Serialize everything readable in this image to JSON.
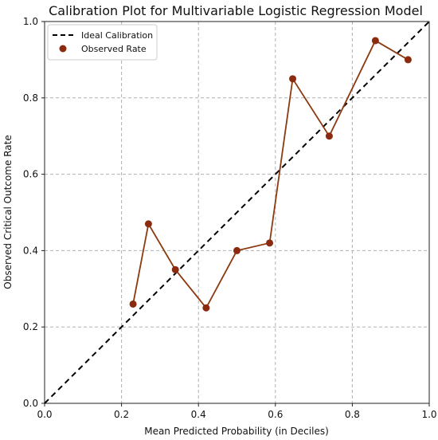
{
  "chart_data": {
    "type": "line",
    "title": "Calibration Plot for Multivariable Logistic Regression Model",
    "xlabel": "Mean Predicted Probability (in Deciles)",
    "ylabel": "Observed Critical Outcome Rate",
    "xlim": [
      0,
      1
    ],
    "ylim": [
      0,
      1
    ],
    "xticks": [
      "0.0",
      "0.2",
      "0.4",
      "0.6",
      "0.8",
      "1.0"
    ],
    "yticks": [
      "0.0",
      "0.2",
      "0.4",
      "0.6",
      "0.8",
      "1.0"
    ],
    "grid": true,
    "legend_position": "top-left",
    "series": [
      {
        "name": "Ideal Calibration",
        "style": "dashed",
        "color": "#000000",
        "x": [
          0,
          1
        ],
        "y": [
          0,
          1
        ]
      },
      {
        "name": "Observed Rate",
        "style": "line-markers",
        "color": "#8b2a0f",
        "line_color": "#8b3a10",
        "x": [
          0.23,
          0.27,
          0.34,
          0.42,
          0.5,
          0.585,
          0.645,
          0.74,
          0.86,
          0.945
        ],
        "y": [
          0.26,
          0.47,
          0.35,
          0.25,
          0.4,
          0.42,
          0.85,
          0.7,
          0.95,
          0.9
        ]
      }
    ]
  }
}
